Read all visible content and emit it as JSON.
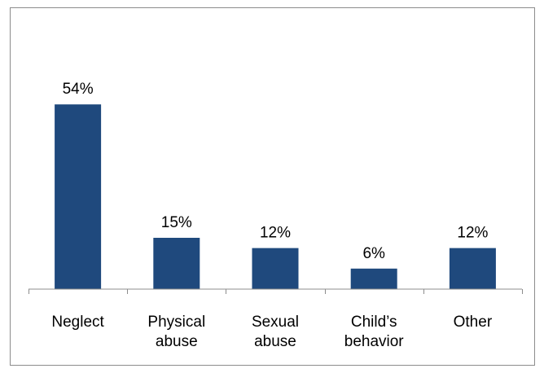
{
  "chart_data": {
    "type": "bar",
    "categories": [
      [
        "Neglect"
      ],
      [
        "Physical",
        "abuse"
      ],
      [
        "Sexual",
        "abuse"
      ],
      [
        "Child’s",
        "behavior"
      ],
      [
        "Other"
      ]
    ],
    "values": [
      54,
      15,
      12,
      6,
      12
    ],
    "data_labels": [
      "54%",
      "15%",
      "12%",
      "6%",
      "12%"
    ],
    "title": "",
    "xlabel": "",
    "ylabel": "",
    "ylim": [
      0,
      60
    ],
    "grid": false,
    "legend": "none",
    "bar_color": "#1f497d"
  }
}
